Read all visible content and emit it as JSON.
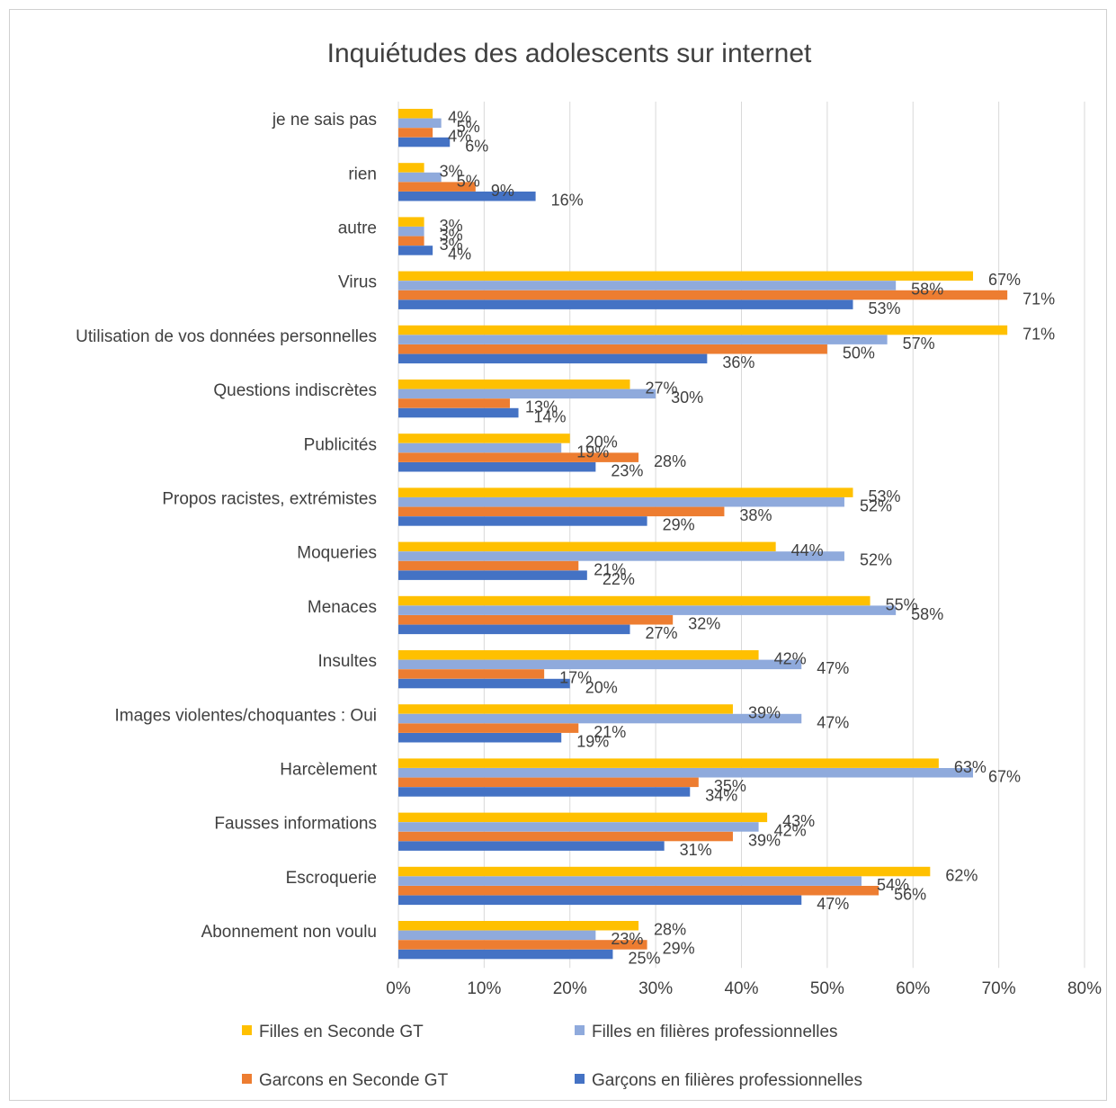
{
  "chart_data": {
    "type": "bar",
    "orientation": "horizontal",
    "title": "Inquiétudes des adolescents sur internet",
    "categories": [
      "je ne sais pas",
      "rien",
      "autre",
      "Virus",
      "Utilisation de vos données personnelles",
      "Questions indiscrètes",
      "Publicités",
      "Propos racistes, extrémistes",
      "Moqueries",
      "Menaces",
      "Insultes",
      "Images violentes/choquantes : Oui",
      "Harcèlement",
      "Fausses informations",
      "Escroquerie",
      "Abonnement non voulu"
    ],
    "series": [
      {
        "name": "Filles en Seconde GT",
        "color": "#FFC000",
        "values": [
          4,
          3,
          3,
          67,
          71,
          27,
          20,
          53,
          44,
          55,
          42,
          39,
          63,
          43,
          62,
          28
        ]
      },
      {
        "name": "Filles en filières professionnelles",
        "color": "#8FAADC",
        "values": [
          5,
          5,
          3,
          58,
          57,
          30,
          19,
          52,
          52,
          58,
          47,
          47,
          67,
          42,
          54,
          23
        ]
      },
      {
        "name": "Garcons en Seconde GT",
        "color": "#ED7D31",
        "values": [
          4,
          9,
          3,
          71,
          50,
          13,
          28,
          38,
          21,
          32,
          17,
          21,
          35,
          39,
          56,
          29
        ]
      },
      {
        "name": "Garçons en filières professionnelles",
        "color": "#4472C4",
        "values": [
          6,
          16,
          4,
          53,
          36,
          14,
          23,
          29,
          22,
          27,
          20,
          19,
          34,
          31,
          47,
          25
        ]
      }
    ],
    "value_suffix": "%",
    "xlim": [
      0,
      80
    ],
    "xticks": [
      0,
      10,
      20,
      30,
      40,
      50,
      60,
      70,
      80
    ],
    "xtick_labels": [
      "0%",
      "10%",
      "20%",
      "30%",
      "40%",
      "50%",
      "60%",
      "70%",
      "80%"
    ],
    "grid": "vertical",
    "legend_position": "bottom"
  }
}
